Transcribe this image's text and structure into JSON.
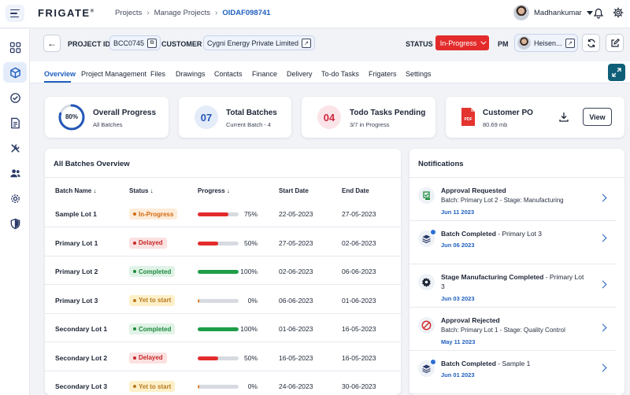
{
  "topbar": {
    "logo": "FRIGATE",
    "logo_mark": "®",
    "breadcrumbs": [
      "Projects",
      "Manage Projects",
      "OIDAF098741"
    ],
    "user_name": "Madhankumar"
  },
  "header": {
    "project_id_label": "PROJECT ID :",
    "project_id": "BCC0745",
    "customer_label": "CUSTOMER :",
    "customer": "Cygni Energy Private Limited",
    "status_label": "STATUS",
    "status": "In-Progress",
    "pm_label": "PM",
    "pm_name": "Heisen..."
  },
  "colors": {
    "accent": "#1f5fbf",
    "status_red": "#e32b2b",
    "progress_green": "#1f9d48",
    "progress_red": "#e32b2b",
    "progress_orange": "#e8791c",
    "expand_button": "#0f5f79"
  },
  "tabs": [
    "Overview",
    "Project Management",
    "Files",
    "Drawings",
    "Contacts",
    "Finance",
    "Delivery",
    "To-do Tasks",
    "Frigaters",
    "Settings"
  ],
  "active_tab": "Overview",
  "cards": {
    "progress": {
      "value": 80,
      "label": "80%",
      "title": "Overall Progress",
      "sub": "All Batches"
    },
    "batches": {
      "number": "07",
      "title": "Total Batches",
      "sub": "Current Batch - 4"
    },
    "todo": {
      "number": "04",
      "title": "Todo Tasks Pending",
      "sub": "3/7 in Progress"
    },
    "po": {
      "title": "Customer PO",
      "sub": "80.69 mb",
      "view_label": "View",
      "pdf_label": "PDF"
    }
  },
  "batches_panel": {
    "title": "All Batches Overview",
    "columns": [
      "Batch Name ↓",
      "Status ↓",
      "Progress ↓",
      "Start Date",
      "End Date"
    ],
    "rows": [
      {
        "name": "Sample Lot 1",
        "status": "In-Progress",
        "progress": 75,
        "pct": "75%",
        "start": "22-05-2023",
        "end": "27-05-2023"
      },
      {
        "name": "Primary Lot 1",
        "status": "Delayed",
        "progress": 50,
        "pct": "50%",
        "start": "27-05-2023",
        "end": "02-06-2023"
      },
      {
        "name": "Primary Lot 2",
        "status": "Completed",
        "progress": 100,
        "pct": "100%",
        "start": "02-06-2023",
        "end": "06-06-2023"
      },
      {
        "name": "Primary Lot 3",
        "status": "Yet to start",
        "progress": 0,
        "pct": "0%",
        "start": "06-06-2023",
        "end": "01-06-2023"
      },
      {
        "name": "Secondary Lot 1",
        "status": "Completed",
        "progress": 100,
        "pct": "100%",
        "start": "01-06-2023",
        "end": "16-05-2023"
      },
      {
        "name": "Secondary Lot 2",
        "status": "Delayed",
        "progress": 50,
        "pct": "50%",
        "start": "16-05-2023",
        "end": "16-05-2023"
      },
      {
        "name": "Secondary Lot 3",
        "status": "Yet to start",
        "progress": 0,
        "pct": "0%",
        "start": "24-06-2023",
        "end": "30-06-2023"
      }
    ]
  },
  "notifications": {
    "title": "Notifications",
    "items": [
      {
        "icon": "approval-icon",
        "title": "Approval Requested",
        "suffix": "",
        "detail": "Batch: Primary Lot 2 - Stage: Manufacturing",
        "date": "Jun 11 2023"
      },
      {
        "icon": "layers-icon",
        "title": "Batch Completed",
        "suffix": " - Primary Lot 3",
        "detail": "",
        "date": "Jun 06 2023"
      },
      {
        "icon": "gear-icon",
        "title": "Stage Manufacturing Completed",
        "suffix": " - Primary Lot 3",
        "detail": "",
        "date": "Jun 03 2023"
      },
      {
        "icon": "rejected-icon",
        "title": "Approval Rejected",
        "suffix": "",
        "detail": "Batch: Primary Lot 1 - Stage: Quality Control",
        "date": "May 11 2023"
      },
      {
        "icon": "layers-icon",
        "title": "Batch Completed",
        "suffix": " - Sample 1",
        "detail": "",
        "date": "Jun 01 2023"
      }
    ]
  }
}
